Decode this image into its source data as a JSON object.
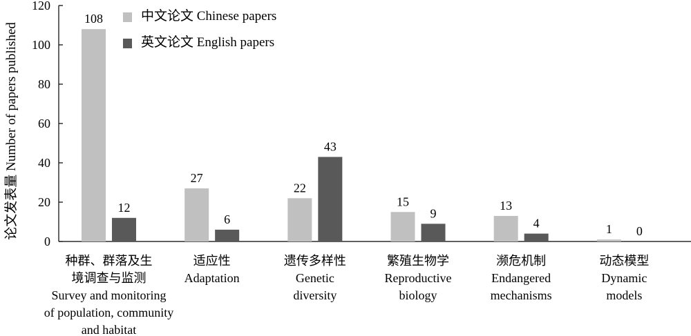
{
  "chart_data": {
    "type": "bar",
    "title": "",
    "xlabel": "",
    "ylabel": "论文发表量 Number of papers published",
    "ylim": [
      0,
      120
    ],
    "yticks": [
      0,
      20,
      40,
      60,
      80,
      100,
      120
    ],
    "grid": false,
    "legend_position": "top-left",
    "categories": [
      "种群、群落及生境调查与监测 Survey and monitoring of population, community and habitat",
      "适应性 Adaptation",
      "遗传多样性 Genetic diversity",
      "繁殖生物学 Reproductive biology",
      "濒危机制 Endangered mechanisms",
      "动态模型 Dynamic models"
    ],
    "category_lines": [
      [
        "种群、群落及生",
        "境调查与监测",
        "Survey and monitoring",
        "of population, community",
        "and habitat"
      ],
      [
        "适应性",
        "Adaptation"
      ],
      [
        "遗传多样性",
        "Genetic",
        "diversity"
      ],
      [
        "繁殖生物学",
        "Reproductive",
        "biology"
      ],
      [
        "濒危机制",
        "Endangered",
        "mechanisms"
      ],
      [
        "动态模型",
        "Dynamic",
        "models"
      ]
    ],
    "series": [
      {
        "name": "中文论文 Chinese papers",
        "color": "#c0c0c0",
        "values": [
          108,
          27,
          22,
          15,
          13,
          1
        ]
      },
      {
        "name": "英文论文 English papers",
        "color": "#595959",
        "values": [
          12,
          6,
          43,
          9,
          4,
          0
        ]
      }
    ]
  }
}
